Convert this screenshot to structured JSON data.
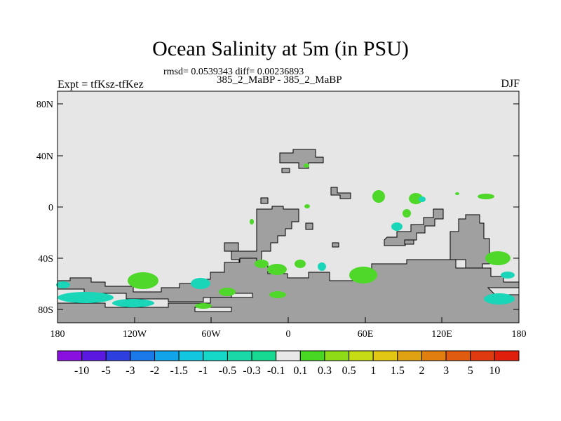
{
  "header": {
    "title": "Ocean Salinity at 5m (in PSU)",
    "subtitle": "rmsd= 0.0539343 diff= 0.00236893",
    "left_label": "Expt = tfKsz-tfKez",
    "center_label": "385_2_MaBP - 385_2_MaBP",
    "right_label": "DJF"
  },
  "map": {
    "x_ticks": [
      "180",
      "120W",
      "60W",
      "0",
      "60E",
      "120E",
      "180"
    ],
    "y_ticks": [
      "80N",
      "40N",
      "0",
      "40S",
      "80S"
    ],
    "colors": {
      "ocean_background": "#e6e6e6",
      "land": "#a0a0a0",
      "positive_anomaly": "#4fd82a",
      "negative_anomaly": "#19d6b8",
      "negative_anomaly_weak": "#2ae0c8"
    }
  },
  "colorbar": {
    "labels": [
      "-10",
      "-5",
      "-3",
      "-2",
      "-1.5",
      "-1",
      "-0.5",
      "-0.3",
      "-0.1",
      "0.1",
      "0.3",
      "0.5",
      "1",
      "1.5",
      "2",
      "3",
      "5",
      "10"
    ],
    "colors": [
      "#8a10e0",
      "#5a18e0",
      "#2e3fe0",
      "#1a78e8",
      "#11a4ea",
      "#12c6e0",
      "#16d8c8",
      "#1ad8a8",
      "#16d890",
      "#e8e8e8",
      "#48d824",
      "#8edc18",
      "#c6dc14",
      "#e2c812",
      "#e0a212",
      "#e07e10",
      "#e05a10",
      "#e03a10",
      "#e01e0c"
    ]
  }
}
